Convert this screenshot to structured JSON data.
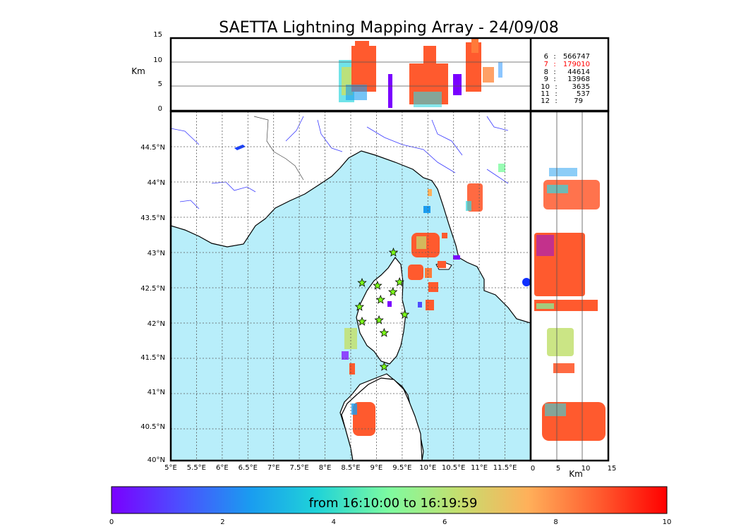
{
  "title": "SAETTA Lightning Mapping Array - 24/09/08",
  "colors": {
    "sea": "#b8eefa",
    "coast": "#000000",
    "rivers": "#3a3aff",
    "borders": "#444444"
  },
  "altitude_panel": {
    "unit_label": "Km",
    "y_ticks": [
      "15",
      "10",
      "5",
      "0"
    ],
    "y_range": [
      0,
      15
    ]
  },
  "side_panel": {
    "unit_label": "Km",
    "x_ticks": [
      "0",
      "5",
      "10",
      "15"
    ],
    "x_range": [
      0,
      15
    ]
  },
  "map": {
    "lon_range": [
      5,
      12
    ],
    "lat_range": [
      40,
      45
    ],
    "lon_labels": [
      "5°E",
      "5.5°E",
      "6°E",
      "6.5°E",
      "7°E",
      "7.5°E",
      "8°E",
      "8.5°E",
      "9°E",
      "9.5°E",
      "10°E",
      "10.5°E",
      "11°E",
      "11.5°E"
    ],
    "lat_labels": [
      "44.5°N",
      "44°N",
      "43.5°N",
      "43°N",
      "42.5°N",
      "42°N",
      "41.5°N",
      "41°N",
      "40.5°N",
      "40°N"
    ],
    "stations": [
      {
        "lon": 9.33,
        "lat": 43.0
      },
      {
        "lon": 8.72,
        "lat": 42.57
      },
      {
        "lon": 9.02,
        "lat": 42.53
      },
      {
        "lon": 9.45,
        "lat": 42.58
      },
      {
        "lon": 9.08,
        "lat": 42.33
      },
      {
        "lon": 9.32,
        "lat": 42.44
      },
      {
        "lon": 8.67,
        "lat": 42.23
      },
      {
        "lon": 9.55,
        "lat": 42.12
      },
      {
        "lon": 8.72,
        "lat": 42.02
      },
      {
        "lon": 9.05,
        "lat": 42.04
      },
      {
        "lon": 9.15,
        "lat": 41.86
      },
      {
        "lon": 9.15,
        "lat": 41.38
      }
    ]
  },
  "stats": [
    {
      "key": "6",
      "sep": ":",
      "value": "566747",
      "highlight": false
    },
    {
      "key": "7",
      "sep": ":",
      "value": "179010",
      "highlight": true
    },
    {
      "key": "8",
      "sep": ":",
      "value": "44614",
      "highlight": false
    },
    {
      "key": "9",
      "sep": ":",
      "value": "13968",
      "highlight": false
    },
    {
      "key": "10",
      "sep": ":",
      "value": "3635",
      "highlight": false
    },
    {
      "key": "11",
      "sep": ":",
      "value": "537",
      "highlight": false
    },
    {
      "key": "12",
      "sep": ":",
      "value": "79",
      "highlight": false
    }
  ],
  "colorbar": {
    "label": "from 16:10:00 to 16:19:59",
    "ticks": [
      "0",
      "2",
      "4",
      "6",
      "8",
      "10"
    ],
    "range": [
      0,
      10
    ],
    "gradient": [
      "#7a00ff",
      "#4d4dff",
      "#1a9cf0",
      "#1fd3d8",
      "#7efba0",
      "#c2e070",
      "#ffb05a",
      "#ff5a2e",
      "#ff0000"
    ]
  }
}
